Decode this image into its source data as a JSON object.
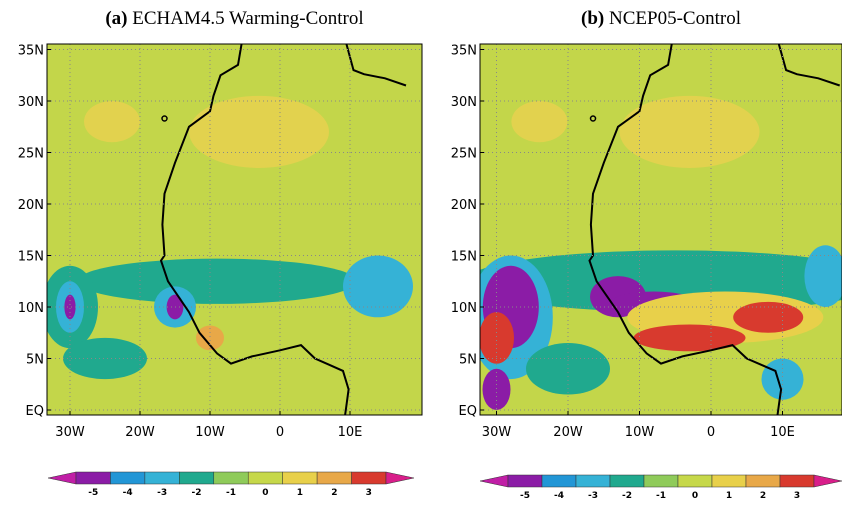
{
  "panels": [
    {
      "label": "(a)",
      "title": "ECHAM4.5 Warming-Control",
      "lat_labels": [
        "35N",
        "30N",
        "25N",
        "20N",
        "15N",
        "10N",
        "5N",
        "EQ"
      ],
      "lon_labels": [
        "30W",
        "20W",
        "10W",
        "0",
        "10E"
      ],
      "colorbar": [
        -5,
        -4,
        -3,
        -2,
        -1,
        0,
        1,
        2,
        3
      ]
    },
    {
      "label": "(b)",
      "title": "NCEP05-Control",
      "lat_labels": [
        "35N",
        "30N",
        "25N",
        "20N",
        "15N",
        "10N",
        "5N",
        "EQ"
      ],
      "lon_labels": [
        "30W",
        "20W",
        "10W",
        "0",
        "10E"
      ],
      "colorbar": [
        -5,
        -4,
        -3,
        -2,
        -1,
        0,
        1,
        2,
        3
      ]
    }
  ]
}
